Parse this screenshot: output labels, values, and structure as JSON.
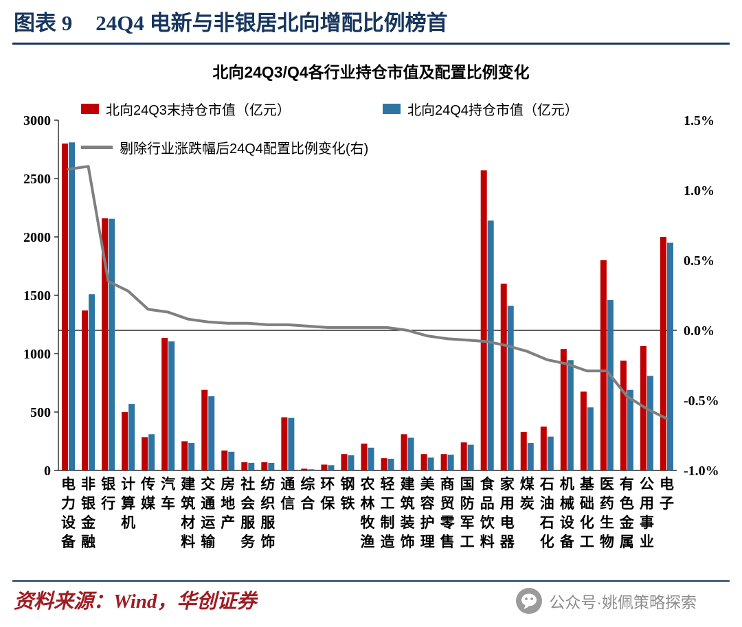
{
  "header": {
    "figure_label": "图表 9",
    "title": "24Q4 电新与非银居北向增配比例榜首"
  },
  "chart": {
    "title": "北向24Q3/Q4各行业持仓市值及配置比例变化"
  },
  "chart_data": {
    "type": "bar+line",
    "title": "北向24Q3/Q4各行业持仓市值及配置比例变化",
    "categories": [
      "电力设备",
      "非银金融",
      "银行",
      "计算机",
      "传媒",
      "汽车",
      "建筑材料",
      "交通运输",
      "房地产",
      "社会服务",
      "纺织服饰",
      "通信",
      "综合",
      "环保",
      "钢铁",
      "农林牧渔",
      "轻工制造",
      "建筑装饰",
      "美容护理",
      "商贸零售",
      "国防军工",
      "食品饮料",
      "家用电器",
      "煤炭",
      "石油石化",
      "机械设备",
      "基础化工",
      "医药生物",
      "有色金属",
      "公用事业",
      "电子"
    ],
    "series": [
      {
        "name": "北向24Q3末持仓市值（亿元）",
        "type": "bar",
        "axis": "left",
        "color": "#C00000",
        "values": [
          2800,
          1370,
          2160,
          500,
          285,
          1135,
          250,
          690,
          170,
          70,
          70,
          455,
          15,
          50,
          140,
          230,
          105,
          310,
          140,
          140,
          240,
          2570,
          1600,
          330,
          375,
          1040,
          675,
          1800,
          940,
          1065,
          2000
        ]
      },
      {
        "name": "北向24Q4持仓市值（亿元）",
        "type": "bar",
        "axis": "left",
        "color": "#2E75A3",
        "values": [
          2810,
          1510,
          2155,
          570,
          310,
          1105,
          235,
          635,
          160,
          65,
          65,
          450,
          10,
          45,
          130,
          195,
          100,
          280,
          110,
          135,
          220,
          2140,
          1410,
          235,
          290,
          945,
          540,
          1460,
          690,
          810,
          1950
        ]
      },
      {
        "name": "剔除行业涨跌幅后24Q4配置比例变化(右)",
        "type": "line",
        "axis": "right",
        "color": "#7F7F7F",
        "values": [
          1.15,
          1.17,
          0.35,
          0.28,
          0.15,
          0.13,
          0.08,
          0.06,
          0.05,
          0.05,
          0.04,
          0.04,
          0.03,
          0.02,
          0.02,
          0.02,
          0.02,
          0.0,
          -0.04,
          -0.06,
          -0.07,
          -0.08,
          -0.11,
          -0.15,
          -0.21,
          -0.24,
          -0.29,
          -0.29,
          -0.47,
          -0.56,
          -0.63
        ]
      }
    ],
    "left_axis": {
      "min": 0,
      "max": 3000,
      "ticks": [
        0,
        500,
        1000,
        1500,
        2000,
        2500,
        3000
      ]
    },
    "right_axis": {
      "min": -1.0,
      "max": 1.5,
      "tick_values": [
        -1.0,
        -0.5,
        0.0,
        0.5,
        1.0,
        1.5
      ],
      "ticks": [
        "-1.0%",
        "-0.5%",
        "0.0%",
        "0.5%",
        "1.0%",
        "1.5%"
      ]
    },
    "zero_line": 0.0,
    "grid": false,
    "legend_position": "top-left"
  },
  "colors": {
    "title_navy": "#17365D",
    "bar_q3_red": "#C00000",
    "bar_q4_blue": "#2E75A3",
    "line_gray": "#7F7F7F",
    "source_red": "#A11B22",
    "footer_gray": "#8C8C8C"
  },
  "footer": {
    "source": "资料来源：Wind，华创证券",
    "wechat": "公众号·姚佩策略探索"
  }
}
